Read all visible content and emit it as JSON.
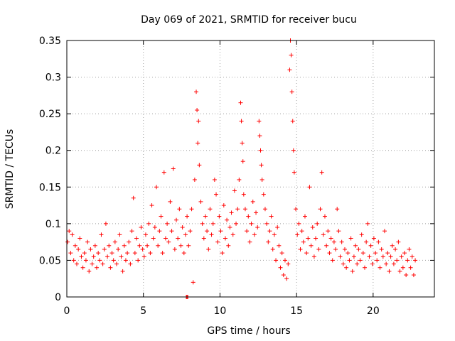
{
  "chart_data": {
    "type": "scatter",
    "title": "Day 069 of 2021, SRMTID for receiver bucu",
    "xlabel": "GPS time / hours",
    "ylabel": "SRMTID / TECUs",
    "xlim": [
      0,
      24
    ],
    "ylim": [
      0,
      0.35
    ],
    "x_ticks": [
      0,
      5,
      10,
      15,
      20
    ],
    "x_tick_labels": [
      "0",
      "5",
      "10",
      "15",
      "20"
    ],
    "y_ticks": [
      0,
      0.05,
      0.1,
      0.15,
      0.2,
      0.25,
      0.3,
      0.35
    ],
    "y_tick_labels": [
      "0",
      "0.05",
      "0.1",
      "0.15",
      "0.2",
      "0.25",
      "0.3",
      "0.35"
    ],
    "grid": true,
    "marker": "plus",
    "marker_color": "#ff0000",
    "series": [
      {
        "name": "SRMTID",
        "points": [
          [
            0.05,
            0.075
          ],
          [
            0.15,
            0.09
          ],
          [
            0.25,
            0.06
          ],
          [
            0.35,
            0.085
          ],
          [
            0.45,
            0.05
          ],
          [
            0.55,
            0.07
          ],
          [
            0.65,
            0.045
          ],
          [
            0.75,
            0.065
          ],
          [
            0.85,
            0.08
          ],
          [
            0.95,
            0.055
          ],
          [
            1.05,
            0.04
          ],
          [
            1.15,
            0.06
          ],
          [
            1.25,
            0.05
          ],
          [
            1.35,
            0.075
          ],
          [
            1.45,
            0.035
          ],
          [
            1.55,
            0.065
          ],
          [
            1.65,
            0.045
          ],
          [
            1.75,
            0.055
          ],
          [
            1.85,
            0.07
          ],
          [
            1.95,
            0.04
          ],
          [
            2.05,
            0.06
          ],
          [
            2.15,
            0.05
          ],
          [
            2.25,
            0.085
          ],
          [
            2.35,
            0.045
          ],
          [
            2.45,
            0.065
          ],
          [
            2.55,
            0.1
          ],
          [
            2.65,
            0.055
          ],
          [
            2.75,
            0.07
          ],
          [
            2.85,
            0.04
          ],
          [
            2.95,
            0.06
          ],
          [
            3.05,
            0.05
          ],
          [
            3.15,
            0.075
          ],
          [
            3.25,
            0.045
          ],
          [
            3.35,
            0.065
          ],
          [
            3.45,
            0.085
          ],
          [
            3.55,
            0.055
          ],
          [
            3.65,
            0.035
          ],
          [
            3.75,
            0.07
          ],
          [
            3.85,
            0.05
          ],
          [
            3.95,
            0.06
          ],
          [
            4.05,
            0.075
          ],
          [
            4.15,
            0.045
          ],
          [
            4.25,
            0.09
          ],
          [
            4.35,
            0.135
          ],
          [
            4.45,
            0.06
          ],
          [
            4.55,
            0.08
          ],
          [
            4.65,
            0.05
          ],
          [
            4.75,
            0.07
          ],
          [
            4.85,
            0.095
          ],
          [
            4.95,
            0.065
          ],
          [
            5.05,
            0.055
          ],
          [
            5.15,
            0.085
          ],
          [
            5.25,
            0.07
          ],
          [
            5.35,
            0.1
          ],
          [
            5.45,
            0.06
          ],
          [
            5.55,
            0.125
          ],
          [
            5.65,
            0.08
          ],
          [
            5.75,
            0.095
          ],
          [
            5.85,
            0.15
          ],
          [
            5.95,
            0.07
          ],
          [
            6.05,
            0.09
          ],
          [
            6.15,
            0.11
          ],
          [
            6.25,
            0.06
          ],
          [
            6.35,
            0.17
          ],
          [
            6.45,
            0.08
          ],
          [
            6.55,
            0.1
          ],
          [
            6.65,
            0.075
          ],
          [
            6.75,
            0.13
          ],
          [
            6.85,
            0.09
          ],
          [
            6.95,
            0.175
          ],
          [
            7.05,
            0.065
          ],
          [
            7.15,
            0.105
          ],
          [
            7.25,
            0.08
          ],
          [
            7.35,
            0.12
          ],
          [
            7.45,
            0.07
          ],
          [
            7.55,
            0.095
          ],
          [
            7.65,
            0.06
          ],
          [
            7.75,
            0.085
          ],
          [
            7.85,
            0.11
          ],
          [
            7.95,
            0.07
          ],
          [
            8.05,
            0.09
          ],
          [
            8.15,
            0.12
          ],
          [
            8.25,
            0.02
          ],
          [
            8.35,
            0.16
          ],
          [
            8.45,
            0.28
          ],
          [
            8.5,
            0.255
          ],
          [
            8.55,
            0.21
          ],
          [
            8.6,
            0.24
          ],
          [
            8.65,
            0.18
          ],
          [
            8.75,
            0.13
          ],
          [
            8.85,
            0.1
          ],
          [
            8.95,
            0.08
          ],
          [
            9.05,
            0.11
          ],
          [
            9.15,
            0.09
          ],
          [
            9.25,
            0.065
          ],
          [
            9.35,
            0.12
          ],
          [
            9.45,
            0.085
          ],
          [
            9.55,
            0.1
          ],
          [
            9.65,
            0.16
          ],
          [
            9.75,
            0.14
          ],
          [
            9.85,
            0.075
          ],
          [
            9.95,
            0.11
          ],
          [
            10.05,
            0.09
          ],
          [
            10.15,
            0.06
          ],
          [
            10.25,
            0.125
          ],
          [
            10.35,
            0.08
          ],
          [
            10.45,
            0.105
          ],
          [
            10.55,
            0.07
          ],
          [
            10.65,
            0.095
          ],
          [
            10.75,
            0.115
          ],
          [
            10.85,
            0.085
          ],
          [
            10.95,
            0.145
          ],
          [
            11.05,
            0.1
          ],
          [
            11.15,
            0.12
          ],
          [
            11.25,
            0.16
          ],
          [
            11.35,
            0.265
          ],
          [
            11.4,
            0.24
          ],
          [
            11.45,
            0.21
          ],
          [
            11.5,
            0.185
          ],
          [
            11.55,
            0.14
          ],
          [
            11.65,
            0.12
          ],
          [
            11.75,
            0.09
          ],
          [
            11.85,
            0.11
          ],
          [
            11.95,
            0.075
          ],
          [
            12.05,
            0.1
          ],
          [
            12.15,
            0.13
          ],
          [
            12.25,
            0.085
          ],
          [
            12.35,
            0.115
          ],
          [
            12.45,
            0.095
          ],
          [
            12.55,
            0.24
          ],
          [
            12.6,
            0.22
          ],
          [
            12.65,
            0.2
          ],
          [
            12.7,
            0.18
          ],
          [
            12.75,
            0.16
          ],
          [
            12.85,
            0.14
          ],
          [
            12.95,
            0.12
          ],
          [
            13.05,
            0.1
          ],
          [
            13.15,
            0.075
          ],
          [
            13.25,
            0.09
          ],
          [
            13.35,
            0.11
          ],
          [
            13.45,
            0.065
          ],
          [
            13.55,
            0.085
          ],
          [
            13.65,
            0.05
          ],
          [
            13.75,
            0.095
          ],
          [
            13.85,
            0.07
          ],
          [
            13.95,
            0.04
          ],
          [
            14.05,
            0.06
          ],
          [
            14.15,
            0.03
          ],
          [
            14.25,
            0.05
          ],
          [
            14.35,
            0.025
          ],
          [
            14.45,
            0.045
          ],
          [
            14.55,
            0.31
          ],
          [
            14.6,
            0.35
          ],
          [
            14.65,
            0.33
          ],
          [
            14.7,
            0.28
          ],
          [
            14.75,
            0.24
          ],
          [
            14.8,
            0.2
          ],
          [
            14.85,
            0.17
          ],
          [
            14.95,
            0.12
          ],
          [
            15.05,
            0.085
          ],
          [
            15.15,
            0.1
          ],
          [
            15.25,
            0.065
          ],
          [
            15.35,
            0.09
          ],
          [
            15.45,
            0.075
          ],
          [
            15.55,
            0.11
          ],
          [
            15.65,
            0.06
          ],
          [
            15.75,
            0.08
          ],
          [
            15.85,
            0.15
          ],
          [
            15.95,
            0.07
          ],
          [
            16.05,
            0.095
          ],
          [
            16.15,
            0.055
          ],
          [
            16.25,
            0.08
          ],
          [
            16.35,
            0.1
          ],
          [
            16.45,
            0.065
          ],
          [
            16.55,
            0.12
          ],
          [
            16.65,
            0.17
          ],
          [
            16.75,
            0.085
          ],
          [
            16.85,
            0.11
          ],
          [
            16.95,
            0.07
          ],
          [
            17.05,
            0.09
          ],
          [
            17.15,
            0.06
          ],
          [
            17.25,
            0.08
          ],
          [
            17.35,
            0.05
          ],
          [
            17.45,
            0.075
          ],
          [
            17.55,
            0.065
          ],
          [
            17.65,
            0.12
          ],
          [
            17.75,
            0.09
          ],
          [
            17.85,
            0.055
          ],
          [
            17.95,
            0.075
          ],
          [
            18.05,
            0.045
          ],
          [
            18.15,
            0.065
          ],
          [
            18.25,
            0.04
          ],
          [
            18.35,
            0.06
          ],
          [
            18.45,
            0.05
          ],
          [
            18.55,
            0.08
          ],
          [
            18.65,
            0.035
          ],
          [
            18.75,
            0.055
          ],
          [
            18.85,
            0.07
          ],
          [
            18.95,
            0.045
          ],
          [
            19.05,
            0.065
          ],
          [
            19.15,
            0.05
          ],
          [
            19.25,
            0.085
          ],
          [
            19.35,
            0.06
          ],
          [
            19.45,
            0.04
          ],
          [
            19.55,
            0.075
          ],
          [
            19.65,
            0.1
          ],
          [
            19.75,
            0.055
          ],
          [
            19.85,
            0.07
          ],
          [
            19.95,
            0.045
          ],
          [
            20.05,
            0.08
          ],
          [
            20.15,
            0.06
          ],
          [
            20.25,
            0.05
          ],
          [
            20.35,
            0.075
          ],
          [
            20.45,
            0.04
          ],
          [
            20.55,
            0.065
          ],
          [
            20.65,
            0.055
          ],
          [
            20.75,
            0.09
          ],
          [
            20.85,
            0.045
          ],
          [
            20.95,
            0.06
          ],
          [
            21.05,
            0.035
          ],
          [
            21.15,
            0.055
          ],
          [
            21.25,
            0.07
          ],
          [
            21.35,
            0.045
          ],
          [
            21.45,
            0.065
          ],
          [
            21.55,
            0.05
          ],
          [
            21.65,
            0.075
          ],
          [
            21.75,
            0.035
          ],
          [
            21.85,
            0.055
          ],
          [
            21.95,
            0.04
          ],
          [
            22.05,
            0.06
          ],
          [
            22.15,
            0.03
          ],
          [
            22.25,
            0.05
          ],
          [
            22.35,
            0.065
          ],
          [
            22.45,
            0.04
          ],
          [
            22.55,
            0.055
          ],
          [
            22.65,
            0.03
          ],
          [
            22.75,
            0.05
          ]
        ],
        "cluster_points": [
          [
            7.8,
            0
          ],
          [
            7.85,
            0
          ],
          [
            7.9,
            0
          ]
        ]
      }
    ]
  }
}
